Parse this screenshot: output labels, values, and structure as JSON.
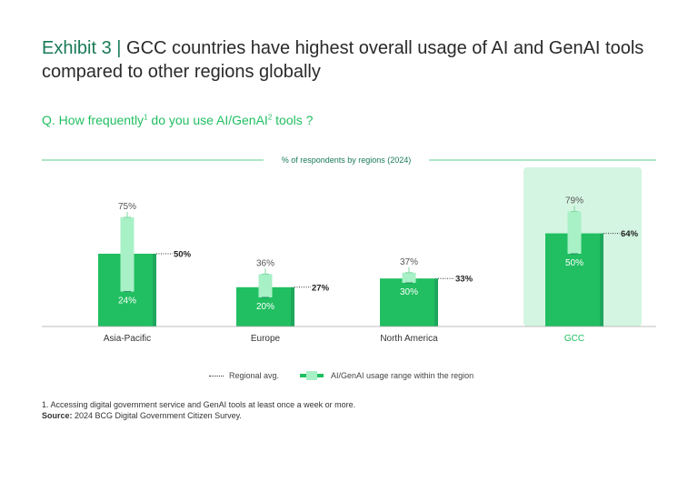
{
  "title": {
    "exhibit": "Exhibit 3",
    "separator": "|",
    "text": "GCC countries have highest overall usage of AI and GenAI tools compared to other regions globally"
  },
  "question": {
    "prefix": "Q. How frequently",
    "sup1": "1",
    "middle": " do you use AI/GenAI",
    "sup2": "2",
    "suffix": " tools ?"
  },
  "colors": {
    "bar": "#21bf61",
    "bar_dark": "#197a56",
    "range": "#a8f0c6",
    "highlight": "#d4f5e1",
    "green_text": "#21bf61"
  },
  "chart_data": {
    "type": "bar",
    "subtitle": "% of respondents by regions (2024)",
    "categories": [
      "Asia-Pacific",
      "Europe",
      "North America",
      "GCC"
    ],
    "highlight_category": "GCC",
    "series": [
      {
        "name": "Regional avg.",
        "values": [
          50,
          27,
          33,
          64
        ],
        "labels": [
          "50%",
          "27%",
          "33%",
          "64%"
        ]
      },
      {
        "name": "AI/GenAI usage range within the region",
        "low": [
          24,
          20,
          30,
          50
        ],
        "high": [
          75,
          36,
          37,
          79
        ],
        "low_labels": [
          "24%",
          "20%",
          "30%",
          "50%"
        ],
        "high_labels": [
          "75%",
          "36%",
          "37%",
          "79%"
        ]
      }
    ],
    "ylim": [
      0,
      100
    ],
    "legend_position": "bottom"
  },
  "legend": {
    "avg_label": "Regional avg.",
    "range_label": "AI/GenAI usage range within the region"
  },
  "footnote": {
    "note1": "1. Accessing digital government service and GenAI tools at least once a week or more.",
    "source_label": "Source:",
    "source_text": " 2024 BCG Digital Government Citizen Survey."
  }
}
